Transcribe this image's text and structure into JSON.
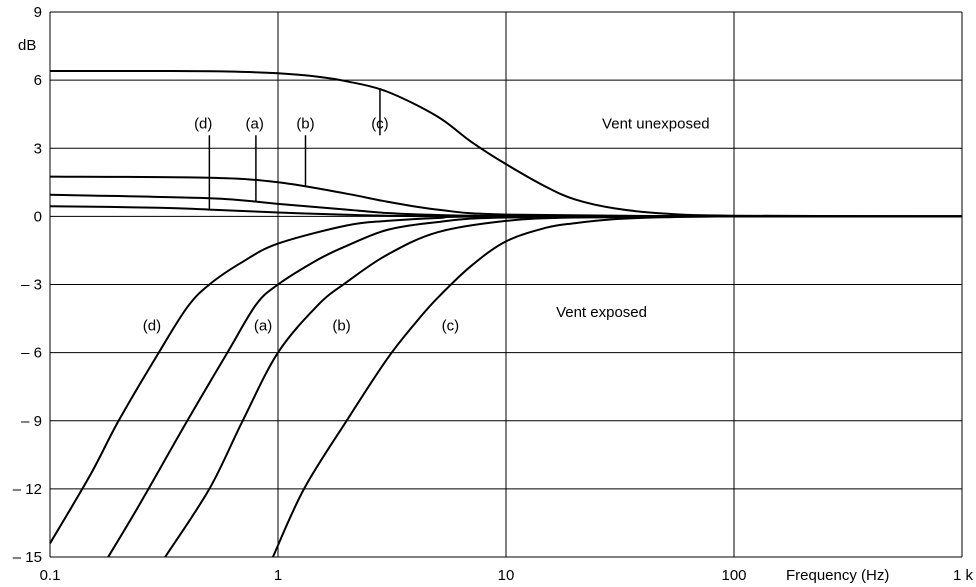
{
  "chart_data": {
    "type": "line",
    "title": "",
    "ylabel": "dB",
    "xlabel": "Frequency (Hz)",
    "x_scale": "log",
    "xlim": [
      0.1,
      1000
    ],
    "ylim": [
      -15,
      9
    ],
    "grid": true,
    "x_ticks": [
      {
        "value": 0.1,
        "label": "0.1"
      },
      {
        "value": 1,
        "label": "1"
      },
      {
        "value": 10,
        "label": "10"
      },
      {
        "value": 100,
        "label": "100"
      },
      {
        "value": 1000,
        "label": "1 k"
      }
    ],
    "y_ticks": [
      {
        "value": 9,
        "label": "9"
      },
      {
        "value": 6,
        "label": "6"
      },
      {
        "value": 3,
        "label": "3"
      },
      {
        "value": 0,
        "label": "0"
      },
      {
        "value": -3,
        "label": "– 3"
      },
      {
        "value": -6,
        "label": "– 6"
      },
      {
        "value": -9,
        "label": "– 9"
      },
      {
        "value": -12,
        "label": "– 12"
      },
      {
        "value": -15,
        "label": "– 15"
      }
    ],
    "series": [
      {
        "name": "(c)",
        "group": "unexposed",
        "points": [
          [
            0.1,
            6.4
          ],
          [
            0.3,
            6.4
          ],
          [
            0.6,
            6.38
          ],
          [
            1,
            6.3
          ],
          [
            1.5,
            6.15
          ],
          [
            2,
            5.95
          ],
          [
            3,
            5.5
          ],
          [
            5,
            4.4
          ],
          [
            7,
            3.3
          ],
          [
            10,
            2.3
          ],
          [
            15,
            1.3
          ],
          [
            20,
            0.75
          ],
          [
            30,
            0.35
          ],
          [
            50,
            0.12
          ],
          [
            100,
            0.03
          ],
          [
            1000,
            0
          ]
        ]
      },
      {
        "name": "(b)",
        "group": "unexposed",
        "points": [
          [
            0.1,
            1.75
          ],
          [
            0.5,
            1.7
          ],
          [
            1,
            1.5
          ],
          [
            2,
            1.0
          ],
          [
            3,
            0.65
          ],
          [
            5,
            0.3
          ],
          [
            10,
            0.08
          ],
          [
            100,
            0
          ],
          [
            1000,
            0
          ]
        ]
      },
      {
        "name": "(a)",
        "group": "unexposed",
        "points": [
          [
            0.1,
            0.95
          ],
          [
            0.5,
            0.8
          ],
          [
            1,
            0.55
          ],
          [
            2,
            0.3
          ],
          [
            3,
            0.15
          ],
          [
            5,
            0.06
          ],
          [
            10,
            0.02
          ],
          [
            100,
            0
          ],
          [
            1000,
            0
          ]
        ]
      },
      {
        "name": "(d)",
        "group": "unexposed",
        "points": [
          [
            0.1,
            0.45
          ],
          [
            0.3,
            0.38
          ],
          [
            0.5,
            0.3
          ],
          [
            1,
            0.17
          ],
          [
            2,
            0.07
          ],
          [
            3,
            0.03
          ],
          [
            10,
            0
          ],
          [
            1000,
            0
          ]
        ]
      },
      {
        "name": "(d)",
        "group": "exposed",
        "points": [
          [
            0.1,
            -14.4
          ],
          [
            0.15,
            -11.4
          ],
          [
            0.2,
            -9.0
          ],
          [
            0.3,
            -6.0
          ],
          [
            0.4,
            -4.0
          ],
          [
            0.5,
            -3.0
          ],
          [
            0.7,
            -2.0
          ],
          [
            1,
            -1.2
          ],
          [
            2,
            -0.4
          ],
          [
            3,
            -0.2
          ],
          [
            5,
            -0.07
          ],
          [
            10,
            0
          ],
          [
            1000,
            0
          ]
        ]
      },
      {
        "name": "(a)",
        "group": "exposed",
        "points": [
          [
            0.18,
            -15
          ],
          [
            0.25,
            -12.6
          ],
          [
            0.4,
            -9.0
          ],
          [
            0.6,
            -6.0
          ],
          [
            0.8,
            -3.9
          ],
          [
            1,
            -3.0
          ],
          [
            1.5,
            -1.9
          ],
          [
            2,
            -1.3
          ],
          [
            3,
            -0.6
          ],
          [
            5,
            -0.25
          ],
          [
            10,
            -0.05
          ],
          [
            100,
            0
          ],
          [
            1000,
            0
          ]
        ]
      },
      {
        "name": "(b)",
        "group": "exposed",
        "points": [
          [
            0.32,
            -15
          ],
          [
            0.5,
            -12.0
          ],
          [
            0.7,
            -9.0
          ],
          [
            1,
            -6.0
          ],
          [
            1.5,
            -3.9
          ],
          [
            2,
            -2.9
          ],
          [
            3,
            -1.7
          ],
          [
            5,
            -0.7
          ],
          [
            10,
            -0.2
          ],
          [
            20,
            -0.05
          ],
          [
            100,
            0
          ],
          [
            1000,
            0
          ]
        ]
      },
      {
        "name": "(c)",
        "group": "exposed",
        "points": [
          [
            0.95,
            -15
          ],
          [
            1.3,
            -12.0
          ],
          [
            2,
            -9.0
          ],
          [
            3,
            -6.3
          ],
          [
            4,
            -4.7
          ],
          [
            5,
            -3.6
          ],
          [
            7,
            -2.2
          ],
          [
            10,
            -1.1
          ],
          [
            15,
            -0.5
          ],
          [
            20,
            -0.3
          ],
          [
            30,
            -0.12
          ],
          [
            50,
            -0.04
          ],
          [
            100,
            0
          ],
          [
            1000,
            0
          ]
        ]
      }
    ],
    "annotations": [
      {
        "text": "Vent unexposed",
        "x": 35,
        "y": 4.1
      },
      {
        "text": "Vent exposed",
        "x": 22,
        "y": -4.2
      },
      {
        "text": "(d)",
        "x": 0.47,
        "y": 4.1,
        "leader_to": [
          0.5,
          0.3
        ]
      },
      {
        "text": "(a)",
        "x": 0.79,
        "y": 4.1,
        "leader_to": [
          0.8,
          0.65
        ]
      },
      {
        "text": "(b)",
        "x": 1.32,
        "y": 4.1,
        "leader_to": [
          1.32,
          1.35
        ]
      },
      {
        "text": "(c)",
        "x": 2.8,
        "y": 4.1,
        "leader_to": [
          2.8,
          5.65
        ]
      },
      {
        "text": "(d)",
        "x": 0.28,
        "y": -4.8
      },
      {
        "text": "(a)",
        "x": 0.86,
        "y": -4.8
      },
      {
        "text": "(b)",
        "x": 1.9,
        "y": -4.8
      },
      {
        "text": "(c)",
        "x": 5.7,
        "y": -4.8
      }
    ]
  }
}
